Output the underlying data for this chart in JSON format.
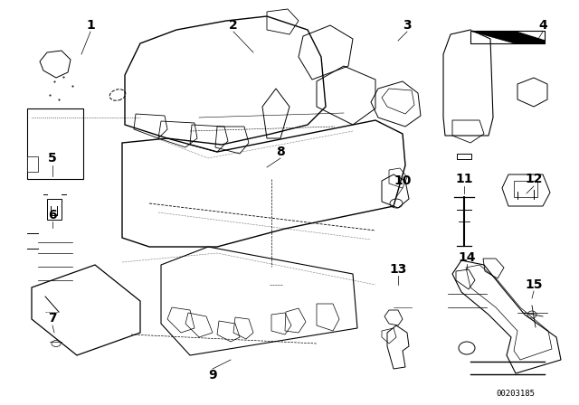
{
  "bg_color": "#ffffff",
  "line_color": "#000000",
  "fig_width": 6.4,
  "fig_height": 4.48,
  "dpi": 100,
  "watermark": "00203185"
}
